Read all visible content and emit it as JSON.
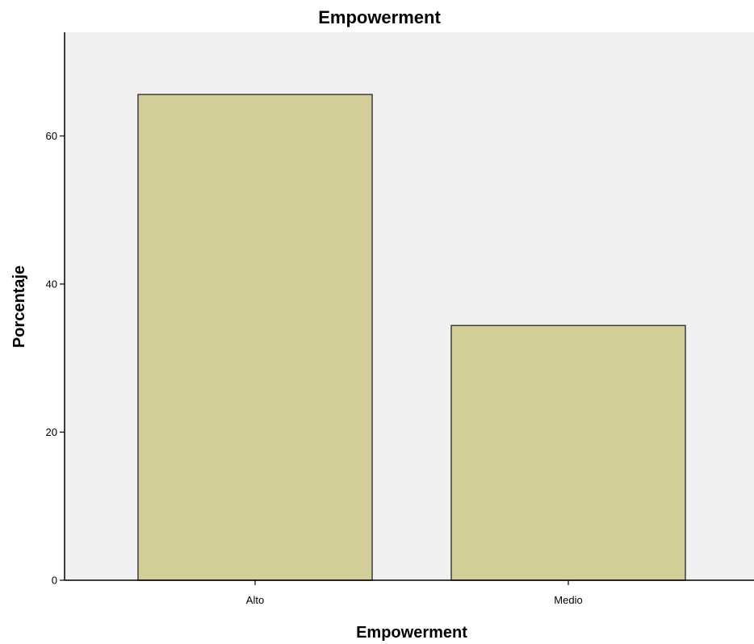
{
  "colors": {
    "plot_background": "#f0f0f0",
    "bar_fill": "#d3ce97",
    "bar_stroke": "#3c3c3c",
    "axis": "#000000"
  },
  "chart_data": {
    "type": "bar",
    "title": "Empowerment",
    "xlabel": "Empowerment",
    "ylabel": "Porcentaje",
    "categories": [
      "Alto",
      "Medio"
    ],
    "values": [
      65.6,
      34.4
    ],
    "ylim": [
      0,
      74
    ],
    "yticks": [
      0,
      20,
      40,
      60
    ],
    "grid": false,
    "legend": "none"
  }
}
